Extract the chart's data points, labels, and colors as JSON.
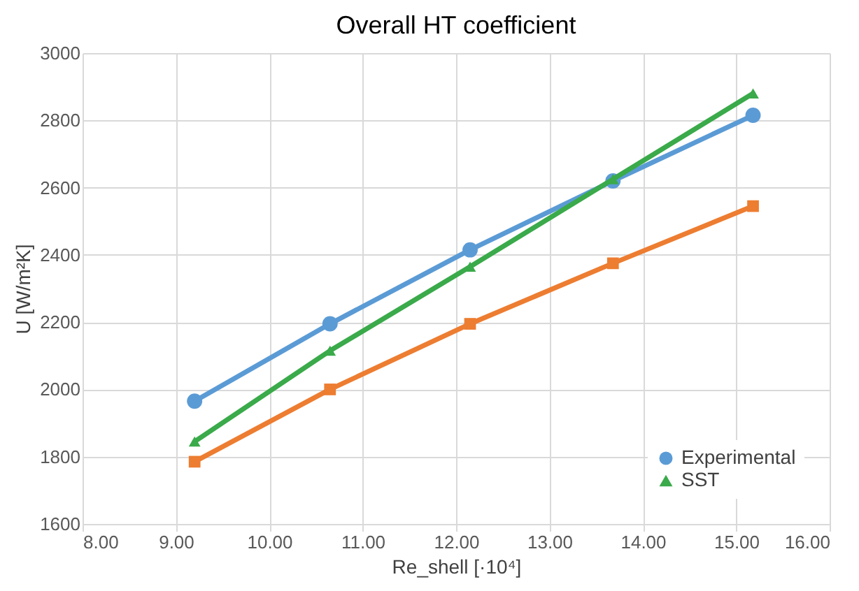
{
  "chart_data": {
    "type": "line",
    "title": "Overall HT coefficient",
    "xlabel": "Re_shell [·10⁴]",
    "ylabel": "U [W/m²K]",
    "x": [
      9.2,
      10.65,
      12.15,
      13.68,
      15.18
    ],
    "series": [
      {
        "name": "Experimental",
        "color": "#5b9bd5",
        "marker": "circle",
        "values": [
          1965,
          2195,
          2415,
          2620,
          2815
        ]
      },
      {
        "color": "#ed7d31",
        "marker": "square",
        "values": [
          1785,
          2000,
          2195,
          2375,
          2545
        ]
      },
      {
        "name": "SST",
        "color": "#3aaa4a",
        "marker": "triangle",
        "values": [
          1845,
          2115,
          2365,
          2625,
          2880
        ]
      }
    ],
    "xlim": [
      8,
      16
    ],
    "xticks": [
      {
        "value": 8,
        "label": "8.00"
      },
      {
        "value": 9,
        "label": "9.00"
      },
      {
        "value": 10,
        "label": "10.00"
      },
      {
        "value": 11,
        "label": "11.00"
      },
      {
        "value": 12,
        "label": "12.00"
      },
      {
        "value": 13,
        "label": "13.00"
      },
      {
        "value": 14,
        "label": "14.00"
      },
      {
        "value": 15,
        "label": "15.00"
      },
      {
        "value": 16,
        "label": "16.00"
      }
    ],
    "ylim": [
      1600,
      3000
    ],
    "yticks": [
      1600,
      1800,
      2000,
      2200,
      2400,
      2600,
      2800,
      3000
    ],
    "grid": true,
    "legend": "bottom right",
    "line_style": "solid"
  }
}
